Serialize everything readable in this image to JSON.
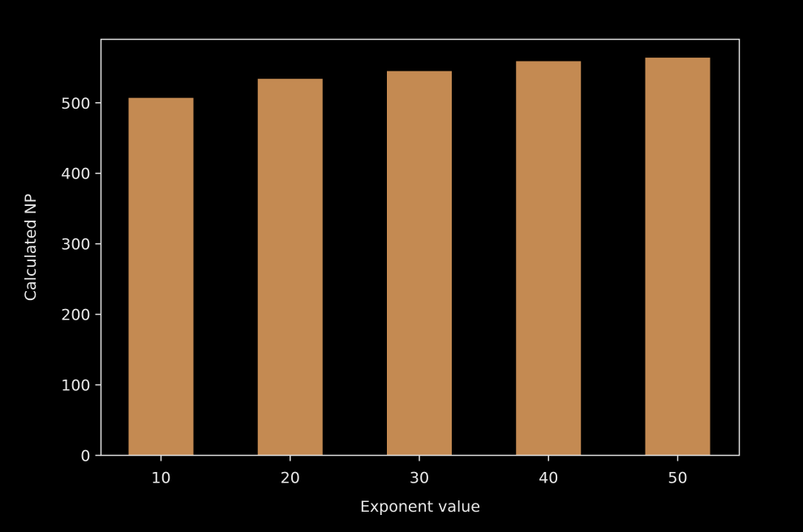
{
  "chart_data": {
    "type": "bar",
    "title": "",
    "xlabel": "Exponent value",
    "ylabel": "Calculated NP",
    "categories": [
      "10",
      "20",
      "30",
      "40",
      "50"
    ],
    "values": [
      507,
      534,
      545,
      559,
      564
    ],
    "ylim": [
      0,
      590
    ],
    "yticks": [
      "0",
      "100",
      "200",
      "300",
      "400",
      "500"
    ],
    "grid": false,
    "legend": "none",
    "colors": {
      "background": "#000000",
      "bar": "#c48a52",
      "axis": "#e0e0e0",
      "text": "#e8e8e8"
    }
  }
}
